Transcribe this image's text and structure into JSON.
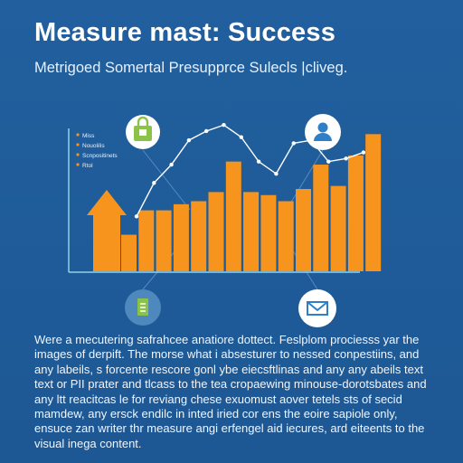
{
  "header": {
    "title": "Measure mast: Success",
    "subtitle": "Metrigoed Somertal Presupprce Sulecls |cliveg."
  },
  "legend": [
    "Miss",
    "Nouolilis",
    "Scnpositinets",
    "Rtol"
  ],
  "body_text": "Were a mecutering safrahcee anatiore dottect. Feslplom prociesss yar the images of derpift. The morse what i absesturer to nessed conpestiins, and any labeils, s forcente rescore gonl ybe eiecsftlinas and any any abeils text text or PII prater and tlcass to the tea cropaewing minouse-dorotsbates and any ltt reacitcas le for reviang chese exuomust aover tetels sts of secid mamdew, any ersck endilc in inted iried cor ens the eoire sapiole only, ensuce zan writer thr measure angi erfengel aid iecures, ard eiteents to the visual inega content.",
  "colors": {
    "background": "#1f5c9b",
    "bar": "#f7941d",
    "axis": "#8fd4e6",
    "line": "#ffffff",
    "icon_green": "#8bc34a",
    "icon_blue": "#2f7fc8"
  },
  "icons": [
    "shopping-bag-icon",
    "user-icon",
    "document-icon",
    "mail-icon",
    "up-arrow-icon"
  ],
  "chart_data": {
    "type": "bar",
    "values": [
      1.2,
      2.0,
      2.0,
      2.2,
      2.3,
      2.6,
      3.6,
      2.6,
      2.5,
      2.3,
      2.7,
      3.5,
      2.8,
      3.8,
      4.5
    ],
    "line": [
      1.8,
      2.9,
      3.5,
      4.3,
      4.6,
      4.8,
      4.4,
      3.6,
      3.2,
      4.2,
      4.3,
      3.6,
      3.7,
      3.9
    ],
    "ylim": [
      0,
      5.4
    ],
    "grid": false,
    "legend_position": "top-left"
  }
}
